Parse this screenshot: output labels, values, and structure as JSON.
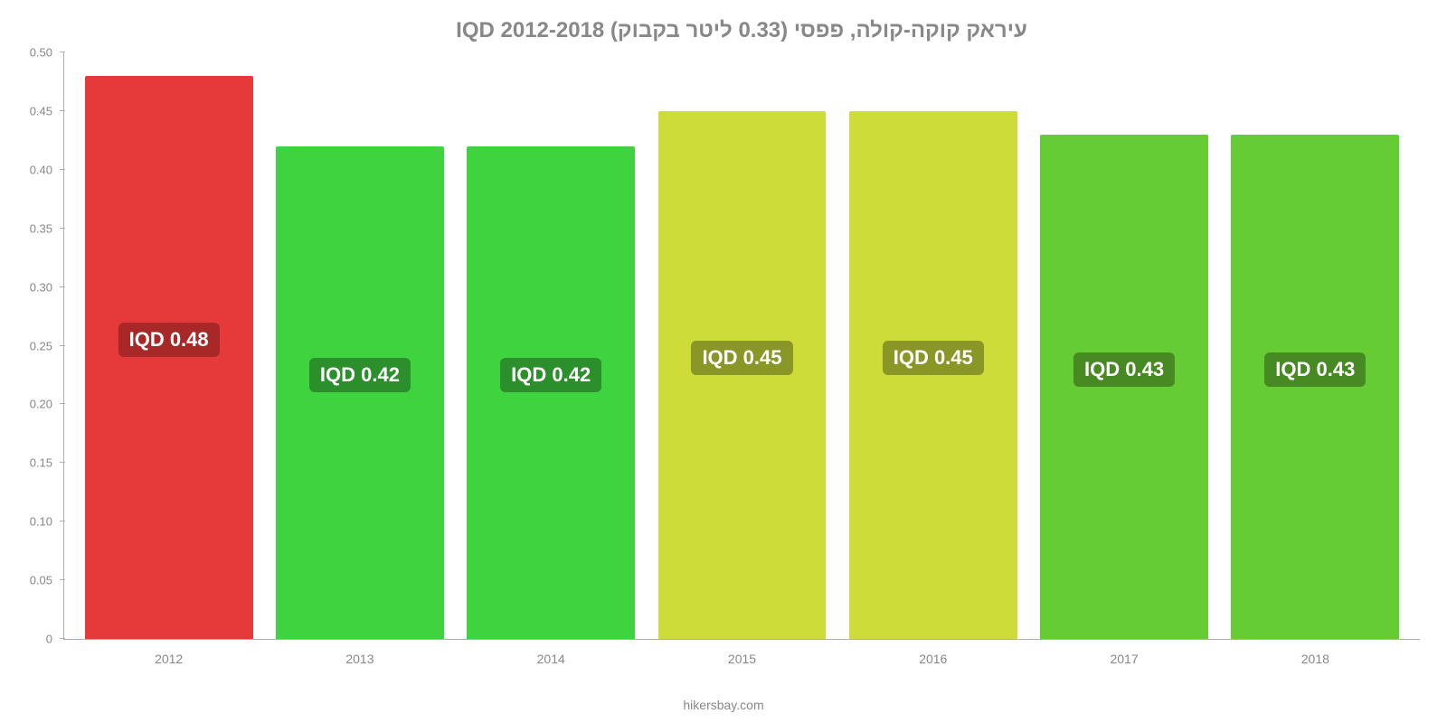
{
  "chart": {
    "type": "bar",
    "title": "עיראק קוקה-קולה, פפסי (0.33 ליטר בקבוק) IQD 2012-2018",
    "title_fontsize": 24,
    "title_color": "#888888",
    "attribution": "hikersbay.com",
    "background_color": "#ffffff",
    "axis_color": "#b0b0b0",
    "tick_label_color": "#888888",
    "tick_label_fontsize": 13,
    "ylim": [
      0,
      0.5
    ],
    "yticks": [
      {
        "v": 0.0,
        "label": "0"
      },
      {
        "v": 0.05,
        "label": "0.05"
      },
      {
        "v": 0.1,
        "label": "0.10"
      },
      {
        "v": 0.15,
        "label": "0.15"
      },
      {
        "v": 0.2,
        "label": "0.20"
      },
      {
        "v": 0.25,
        "label": "0.25"
      },
      {
        "v": 0.3,
        "label": "0.30"
      },
      {
        "v": 0.35,
        "label": "0.35"
      },
      {
        "v": 0.4,
        "label": "0.40"
      },
      {
        "v": 0.45,
        "label": "0.45"
      },
      {
        "v": 0.5,
        "label": "0.50"
      }
    ],
    "bar_width_pct": 88,
    "value_label_fontsize": 22,
    "value_label_text_color": "#ffffff",
    "bars": [
      {
        "year": "2012",
        "value": 0.48,
        "value_label": "IQD 0.48",
        "fill": "#e63939",
        "label_bg": "#a82828",
        "label_bottom_pct": 50
      },
      {
        "year": "2013",
        "value": 0.42,
        "value_label": "IQD 0.42",
        "fill": "#3fd33f",
        "label_bg": "#2b8f2b",
        "label_bottom_pct": 50
      },
      {
        "year": "2014",
        "value": 0.42,
        "value_label": "IQD 0.42",
        "fill": "#3fd33f",
        "label_bg": "#2b8f2b",
        "label_bottom_pct": 50
      },
      {
        "year": "2015",
        "value": 0.45,
        "value_label": "IQD 0.45",
        "fill": "#cddc39",
        "label_bg": "#8a9626",
        "label_bottom_pct": 50
      },
      {
        "year": "2016",
        "value": 0.45,
        "value_label": "IQD 0.45",
        "fill": "#cddc39",
        "label_bg": "#8a9626",
        "label_bottom_pct": 50
      },
      {
        "year": "2017",
        "value": 0.43,
        "value_label": "IQD 0.43",
        "fill": "#66cc33",
        "label_bg": "#478a23",
        "label_bottom_pct": 50
      },
      {
        "year": "2018",
        "value": 0.43,
        "value_label": "IQD 0.43",
        "fill": "#66cc33",
        "label_bg": "#478a23",
        "label_bottom_pct": 50
      }
    ]
  }
}
